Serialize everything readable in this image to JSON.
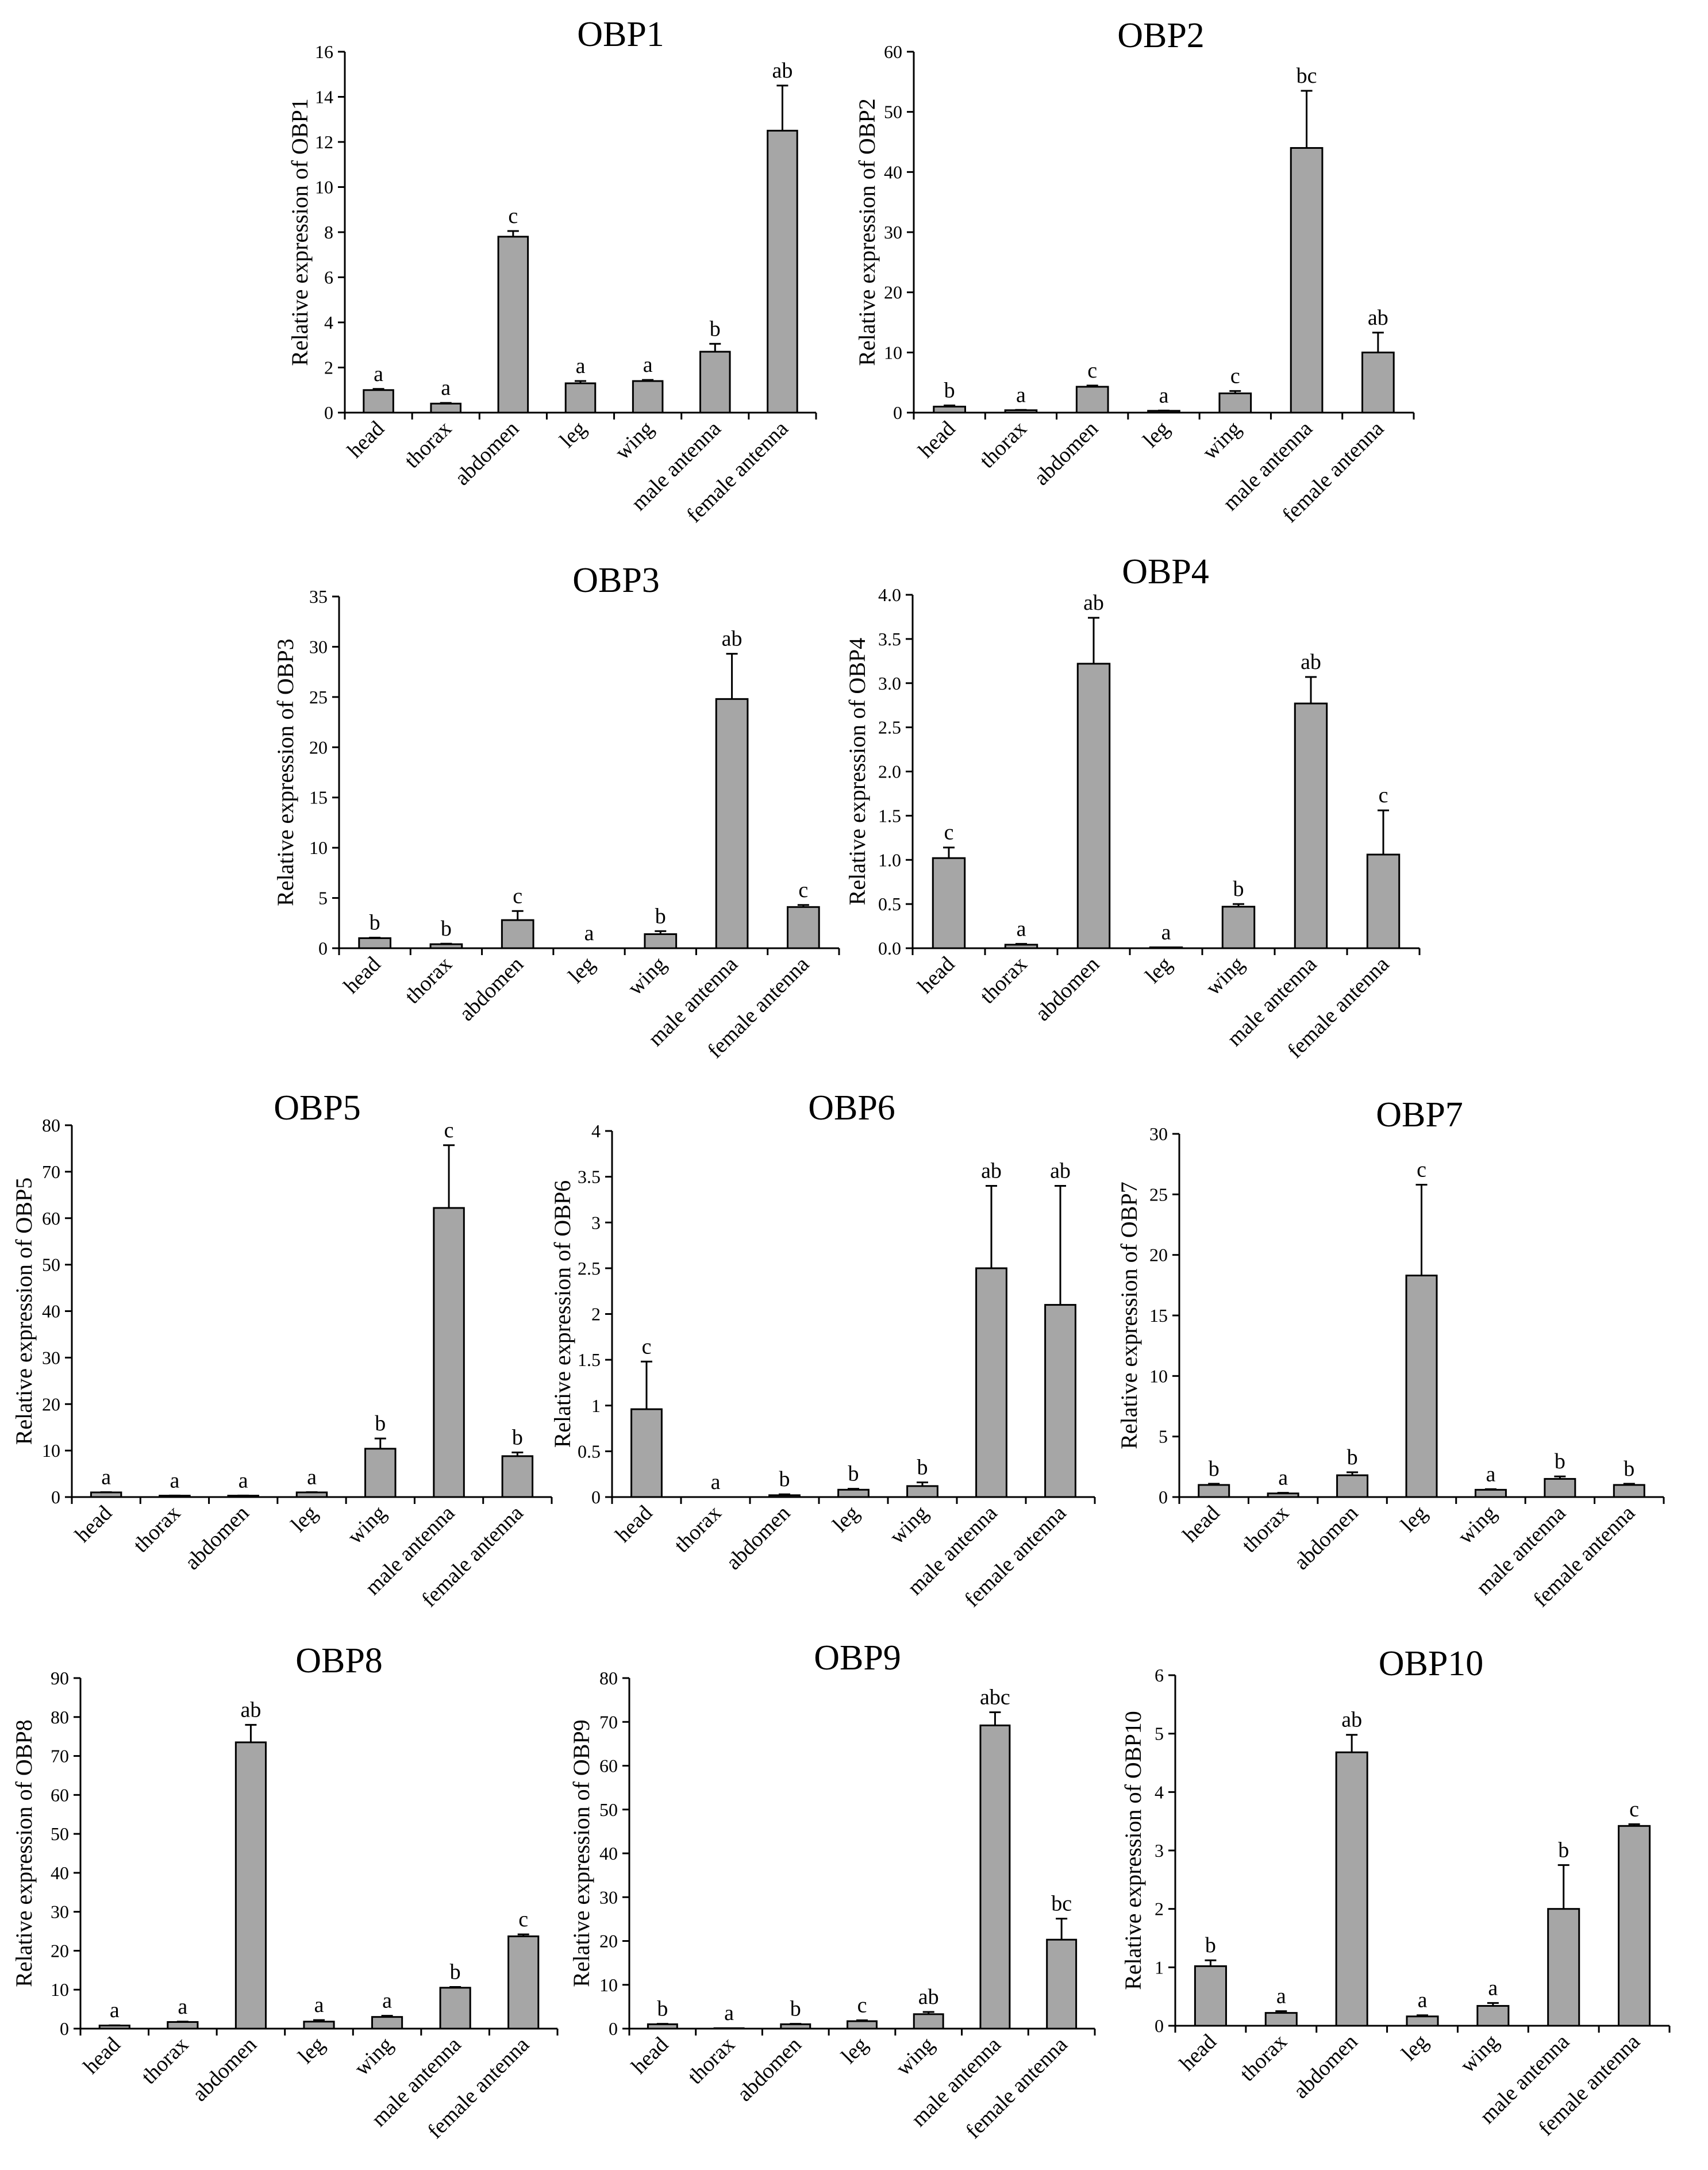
{
  "figure": {
    "background": "#ffffff",
    "bar_color": "#a6a6a6"
  },
  "chart_data": [
    {
      "id": "OBP1",
      "type": "bar",
      "title": "OBP1",
      "ylabel": "Relative expression of OBP1",
      "xlabel": "",
      "categories": [
        "head",
        "thorax",
        "abdomen",
        "leg",
        "wing",
        "male antenna",
        "female antenna"
      ],
      "values": [
        1.0,
        0.4,
        7.8,
        1.3,
        1.4,
        2.7,
        12.5
      ],
      "errors": [
        0.05,
        0.03,
        0.25,
        0.1,
        0.05,
        0.35,
        2.0
      ],
      "labels": [
        "a",
        "a",
        "c",
        "a",
        "a",
        "b",
        "ab"
      ],
      "ylim": [
        0,
        16
      ],
      "yticks": [
        0,
        2,
        4,
        6,
        8,
        10,
        12,
        14,
        16
      ],
      "ytick_labels": [
        "0",
        "2",
        "4",
        "6",
        "8",
        "10",
        "12",
        "14",
        "16"
      ]
    },
    {
      "id": "OBP2",
      "type": "bar",
      "title": "OBP2",
      "ylabel": "Relative expression of OBP2",
      "xlabel": "",
      "categories": [
        "head",
        "thorax",
        "abdomen",
        "leg",
        "wing",
        "male antenna",
        "female antenna"
      ],
      "values": [
        1.0,
        0.4,
        4.3,
        0.3,
        3.2,
        44.0,
        10.0
      ],
      "errors": [
        0.2,
        0.05,
        0.2,
        0.05,
        0.4,
        9.5,
        3.3
      ],
      "labels": [
        "b",
        "a",
        "c",
        "a",
        "c",
        "bc",
        "ab"
      ],
      "ylim": [
        0,
        60
      ],
      "yticks": [
        0,
        10,
        20,
        30,
        40,
        50,
        60
      ],
      "ytick_labels": [
        "0",
        "10",
        "20",
        "30",
        "40",
        "50",
        "60"
      ]
    },
    {
      "id": "OBP3",
      "type": "bar",
      "title": "OBP3",
      "ylabel": "Relative expression of OBP3",
      "xlabel": "",
      "categories": [
        "head",
        "thorax",
        "abdomen",
        "leg",
        "wing",
        "male antenna",
        "female antenna"
      ],
      "values": [
        1.0,
        0.4,
        2.8,
        0.0,
        1.4,
        24.8,
        4.1
      ],
      "errors": [
        0.05,
        0.05,
        0.9,
        0.0,
        0.3,
        4.5,
        0.2
      ],
      "labels": [
        "b",
        "b",
        "c",
        "a",
        "b",
        "ab",
        "c"
      ],
      "ylim": [
        0,
        35
      ],
      "yticks": [
        0,
        5,
        10,
        15,
        20,
        25,
        30,
        35
      ],
      "ytick_labels": [
        "0",
        "5",
        "10",
        "15",
        "20",
        "25",
        "30",
        "35"
      ]
    },
    {
      "id": "OBP4",
      "type": "bar",
      "title": "OBP4",
      "ylabel": "Relative expression of OBP4",
      "xlabel": "",
      "categories": [
        "head",
        "thorax",
        "abdomen",
        "leg",
        "wing",
        "male antenna",
        "female antenna"
      ],
      "values": [
        1.02,
        0.04,
        3.22,
        0.01,
        0.47,
        2.77,
        1.06
      ],
      "errors": [
        0.12,
        0.01,
        0.52,
        0.0,
        0.03,
        0.3,
        0.5
      ],
      "labels": [
        "c",
        "a",
        "ab",
        "a",
        "b",
        "ab",
        "c"
      ],
      "ylim": [
        0,
        4.0
      ],
      "yticks": [
        0,
        0.5,
        1.0,
        1.5,
        2.0,
        2.5,
        3.0,
        3.5,
        4.0
      ],
      "ytick_labels": [
        "0.0",
        "0.5",
        "1.0",
        "1.5",
        "2.0",
        "2.5",
        "3.0",
        "3.5",
        "4.0"
      ]
    },
    {
      "id": "OBP5",
      "type": "bar",
      "title": "OBP5",
      "ylabel": "Relative expression of OBP5",
      "xlabel": "",
      "categories": [
        "head",
        "thorax",
        "abdomen",
        "leg",
        "wing",
        "male antenna",
        "female antenna"
      ],
      "values": [
        1.0,
        0.3,
        0.3,
        1.0,
        10.4,
        62.2,
        8.8
      ],
      "errors": [
        0.05,
        0.02,
        0.02,
        0.05,
        2.2,
        13.5,
        0.8
      ],
      "labels": [
        "a",
        "a",
        "a",
        "a",
        "b",
        "c",
        "b"
      ],
      "ylim": [
        0,
        80
      ],
      "yticks": [
        0,
        10,
        20,
        30,
        40,
        50,
        60,
        70,
        80
      ],
      "ytick_labels": [
        "0",
        "10",
        "20",
        "30",
        "40",
        "50",
        "60",
        "70",
        "80"
      ]
    },
    {
      "id": "OBP6",
      "type": "bar",
      "title": "OBP6",
      "ylabel": "Relative expression of OBP6",
      "xlabel": "",
      "categories": [
        "head",
        "thorax",
        "abdomen",
        "leg",
        "wing",
        "male antenna",
        "female antenna"
      ],
      "values": [
        0.96,
        0.0,
        0.02,
        0.08,
        0.12,
        2.5,
        2.1
      ],
      "errors": [
        0.52,
        0.0,
        0.01,
        0.01,
        0.04,
        0.9,
        1.3
      ],
      "labels": [
        "c",
        "a",
        "b",
        "b",
        "b",
        "ab",
        "ab"
      ],
      "ylim": [
        0,
        4
      ],
      "yticks": [
        0,
        0.5,
        1,
        1.5,
        2,
        2.5,
        3,
        3.5,
        4
      ],
      "ytick_labels": [
        "0",
        "0.5",
        "1",
        "1.5",
        "2",
        "2.5",
        "3",
        "3.5",
        "4"
      ]
    },
    {
      "id": "OBP7",
      "type": "bar",
      "title": "OBP7",
      "ylabel": "Relative expression of OBP7",
      "xlabel": "",
      "categories": [
        "head",
        "thorax",
        "abdomen",
        "leg",
        "wing",
        "male antenna",
        "female antenna"
      ],
      "values": [
        1.0,
        0.3,
        1.8,
        18.3,
        0.6,
        1.5,
        1.0
      ],
      "errors": [
        0.1,
        0.05,
        0.25,
        7.5,
        0.05,
        0.2,
        0.1
      ],
      "labels": [
        "b",
        "a",
        "b",
        "c",
        "a",
        "b",
        "b"
      ],
      "ylim": [
        0,
        30
      ],
      "yticks": [
        0,
        5,
        10,
        15,
        20,
        25,
        30
      ],
      "ytick_labels": [
        "0",
        "5",
        "10",
        "15",
        "20",
        "25",
        "30"
      ]
    },
    {
      "id": "OBP8",
      "type": "bar",
      "title": "OBP8",
      "ylabel": "Relative expression of OBP8",
      "xlabel": "",
      "categories": [
        "head",
        "thorax",
        "abdomen",
        "leg",
        "wing",
        "male antenna",
        "female antenna"
      ],
      "values": [
        0.8,
        1.7,
        73.5,
        1.8,
        3.0,
        10.5,
        23.7
      ],
      "errors": [
        0.05,
        0.1,
        4.5,
        0.4,
        0.3,
        0.2,
        0.5
      ],
      "labels": [
        "a",
        "a",
        "ab",
        "a",
        "a",
        "b",
        "c"
      ],
      "ylim": [
        0,
        90
      ],
      "yticks": [
        0,
        10,
        20,
        30,
        40,
        50,
        60,
        70,
        80,
        90
      ],
      "ytick_labels": [
        "0",
        "10",
        "20",
        "30",
        "40",
        "50",
        "60",
        "70",
        "80",
        "90"
      ]
    },
    {
      "id": "OBP9",
      "type": "bar",
      "title": "OBP9",
      "ylabel": "Relative expression of OBP9",
      "xlabel": "",
      "categories": [
        "head",
        "thorax",
        "abdomen",
        "leg",
        "wing",
        "male antenna",
        "female antenna"
      ],
      "values": [
        1.0,
        0.1,
        1.0,
        1.7,
        3.3,
        69.2,
        20.3
      ],
      "errors": [
        0.1,
        0.0,
        0.1,
        0.2,
        0.5,
        3.0,
        4.8
      ],
      "labels": [
        "b",
        "a",
        "b",
        "c",
        "ab",
        "abc",
        "bc"
      ],
      "ylim": [
        0,
        80
      ],
      "yticks": [
        0,
        10,
        20,
        30,
        40,
        50,
        60,
        70,
        80
      ],
      "ytick_labels": [
        "0",
        "10",
        "20",
        "30",
        "40",
        "50",
        "60",
        "70",
        "80"
      ]
    },
    {
      "id": "OBP10",
      "type": "bar",
      "title": "OBP10",
      "ylabel": "Relative expression of OBP10",
      "xlabel": "",
      "categories": [
        "head",
        "thorax",
        "abdomen",
        "leg",
        "wing",
        "male antenna",
        "female antenna"
      ],
      "values": [
        1.02,
        0.22,
        4.68,
        0.16,
        0.34,
        2.0,
        3.42
      ],
      "errors": [
        0.1,
        0.03,
        0.3,
        0.02,
        0.05,
        0.75,
        0.03
      ],
      "labels": [
        "b",
        "a",
        "ab",
        "a",
        "a",
        "b",
        "c"
      ],
      "ylim": [
        0,
        6
      ],
      "yticks": [
        0,
        1,
        2,
        3,
        4,
        5,
        6
      ],
      "ytick_labels": [
        "0",
        "1",
        "2",
        "3",
        "4",
        "5",
        "6"
      ]
    }
  ]
}
